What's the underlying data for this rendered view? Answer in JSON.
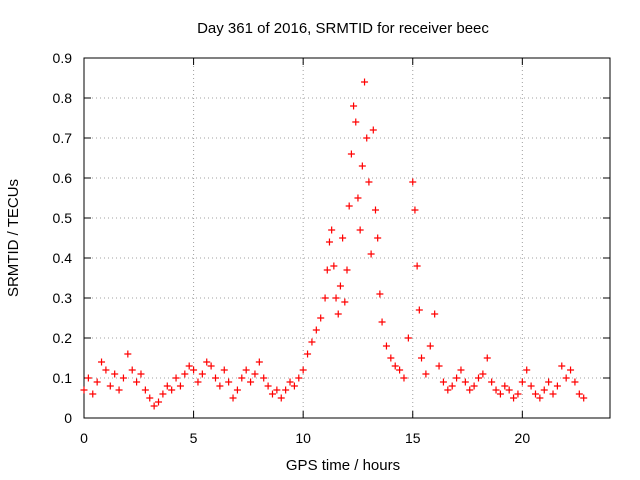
{
  "chart_data": {
    "type": "scatter",
    "title": "Day 361 of 2016, SRMTID for receiver beec",
    "xlabel": "GPS time / hours",
    "ylabel": "SRMTID / TECUs",
    "xlim": [
      0,
      24
    ],
    "ylim": [
      0,
      0.9
    ],
    "xticks": [
      0,
      5,
      10,
      15,
      20
    ],
    "xtick_labels": [
      "0",
      "5",
      "10",
      "15",
      "20"
    ],
    "yticks": [
      0,
      0.1,
      0.2,
      0.3,
      0.4,
      0.5,
      0.6,
      0.7,
      0.8,
      0.9
    ],
    "ytick_labels": [
      "0",
      "0.1",
      "0.2",
      "0.3",
      "0.4",
      "0.5",
      "0.6",
      "0.7",
      "0.8",
      "0.9"
    ],
    "grid": true,
    "marker": "+",
    "color": "#ff0000",
    "series": [
      {
        "name": "SRMTID",
        "points": [
          [
            0.0,
            0.07
          ],
          [
            0.2,
            0.1
          ],
          [
            0.4,
            0.06
          ],
          [
            0.6,
            0.09
          ],
          [
            0.8,
            0.14
          ],
          [
            1.0,
            0.12
          ],
          [
            1.2,
            0.08
          ],
          [
            1.4,
            0.11
          ],
          [
            1.6,
            0.07
          ],
          [
            1.8,
            0.1
          ],
          [
            2.0,
            0.16
          ],
          [
            2.2,
            0.12
          ],
          [
            2.4,
            0.09
          ],
          [
            2.6,
            0.11
          ],
          [
            2.8,
            0.07
          ],
          [
            3.0,
            0.05
          ],
          [
            3.2,
            0.03
          ],
          [
            3.4,
            0.04
          ],
          [
            3.6,
            0.06
          ],
          [
            3.8,
            0.08
          ],
          [
            4.0,
            0.07
          ],
          [
            4.2,
            0.1
          ],
          [
            4.4,
            0.08
          ],
          [
            4.6,
            0.11
          ],
          [
            4.8,
            0.13
          ],
          [
            5.0,
            0.12
          ],
          [
            5.2,
            0.09
          ],
          [
            5.4,
            0.11
          ],
          [
            5.6,
            0.14
          ],
          [
            5.8,
            0.13
          ],
          [
            6.0,
            0.1
          ],
          [
            6.2,
            0.08
          ],
          [
            6.4,
            0.12
          ],
          [
            6.6,
            0.09
          ],
          [
            6.8,
            0.05
          ],
          [
            7.0,
            0.07
          ],
          [
            7.2,
            0.1
          ],
          [
            7.4,
            0.12
          ],
          [
            7.6,
            0.09
          ],
          [
            7.8,
            0.11
          ],
          [
            8.0,
            0.14
          ],
          [
            8.2,
            0.1
          ],
          [
            8.4,
            0.08
          ],
          [
            8.6,
            0.06
          ],
          [
            8.8,
            0.07
          ],
          [
            9.0,
            0.05
          ],
          [
            9.2,
            0.07
          ],
          [
            9.4,
            0.09
          ],
          [
            9.6,
            0.08
          ],
          [
            9.8,
            0.1
          ],
          [
            10.0,
            0.12
          ],
          [
            10.2,
            0.16
          ],
          [
            10.4,
            0.19
          ],
          [
            10.6,
            0.22
          ],
          [
            10.8,
            0.25
          ],
          [
            11.0,
            0.3
          ],
          [
            11.1,
            0.37
          ],
          [
            11.2,
            0.44
          ],
          [
            11.3,
            0.47
          ],
          [
            11.4,
            0.38
          ],
          [
            11.5,
            0.3
          ],
          [
            11.6,
            0.26
          ],
          [
            11.7,
            0.33
          ],
          [
            11.8,
            0.45
          ],
          [
            11.9,
            0.29
          ],
          [
            12.0,
            0.37
          ],
          [
            12.1,
            0.53
          ],
          [
            12.2,
            0.66
          ],
          [
            12.3,
            0.78
          ],
          [
            12.4,
            0.74
          ],
          [
            12.5,
            0.55
          ],
          [
            12.6,
            0.47
          ],
          [
            12.7,
            0.63
          ],
          [
            12.8,
            0.84
          ],
          [
            12.9,
            0.7
          ],
          [
            13.0,
            0.59
          ],
          [
            13.1,
            0.41
          ],
          [
            13.2,
            0.72
          ],
          [
            13.3,
            0.52
          ],
          [
            13.4,
            0.45
          ],
          [
            13.5,
            0.31
          ],
          [
            13.6,
            0.24
          ],
          [
            13.8,
            0.18
          ],
          [
            14.0,
            0.15
          ],
          [
            14.2,
            0.13
          ],
          [
            14.4,
            0.12
          ],
          [
            14.6,
            0.1
          ],
          [
            14.8,
            0.2
          ],
          [
            15.0,
            0.59
          ],
          [
            15.1,
            0.52
          ],
          [
            15.2,
            0.38
          ],
          [
            15.3,
            0.27
          ],
          [
            15.4,
            0.15
          ],
          [
            15.6,
            0.11
          ],
          [
            15.8,
            0.18
          ],
          [
            16.0,
            0.26
          ],
          [
            16.2,
            0.13
          ],
          [
            16.4,
            0.09
          ],
          [
            16.6,
            0.07
          ],
          [
            16.8,
            0.08
          ],
          [
            17.0,
            0.1
          ],
          [
            17.2,
            0.12
          ],
          [
            17.4,
            0.09
          ],
          [
            17.6,
            0.07
          ],
          [
            17.8,
            0.08
          ],
          [
            18.0,
            0.1
          ],
          [
            18.2,
            0.11
          ],
          [
            18.4,
            0.15
          ],
          [
            18.6,
            0.09
          ],
          [
            18.8,
            0.07
          ],
          [
            19.0,
            0.06
          ],
          [
            19.2,
            0.08
          ],
          [
            19.4,
            0.07
          ],
          [
            19.6,
            0.05
          ],
          [
            19.8,
            0.06
          ],
          [
            20.0,
            0.09
          ],
          [
            20.2,
            0.12
          ],
          [
            20.4,
            0.08
          ],
          [
            20.6,
            0.06
          ],
          [
            20.8,
            0.05
          ],
          [
            21.0,
            0.07
          ],
          [
            21.2,
            0.09
          ],
          [
            21.4,
            0.06
          ],
          [
            21.6,
            0.08
          ],
          [
            21.8,
            0.13
          ],
          [
            22.0,
            0.1
          ],
          [
            22.2,
            0.12
          ],
          [
            22.4,
            0.09
          ],
          [
            22.6,
            0.06
          ],
          [
            22.8,
            0.05
          ]
        ]
      }
    ]
  }
}
